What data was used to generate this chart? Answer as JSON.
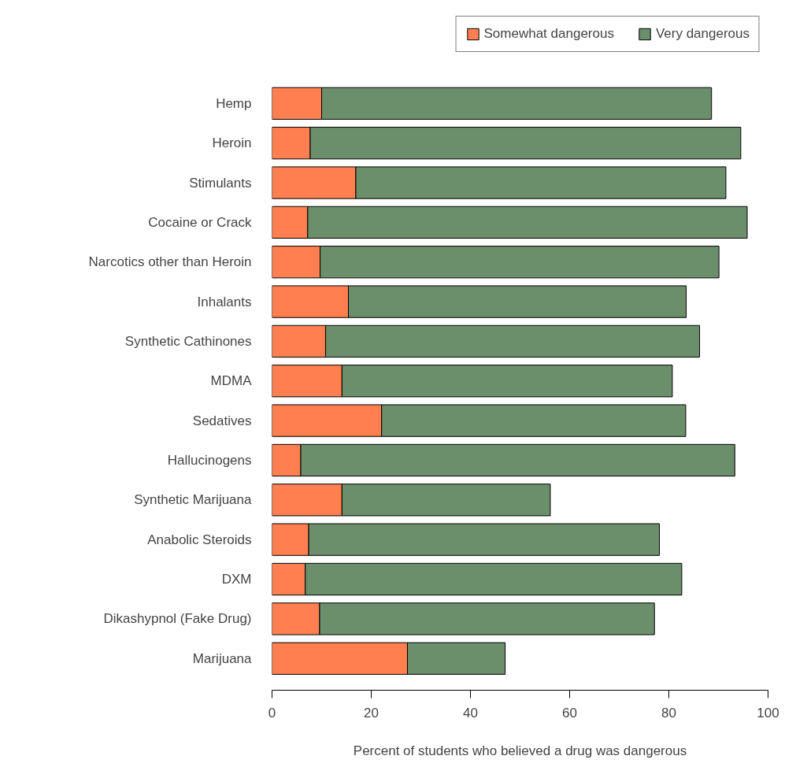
{
  "chart_data": {
    "type": "bar",
    "orientation": "horizontal",
    "stacked": true,
    "xlabel": "Percent of students who believed a drug was dangerous",
    "categories": [
      "Hemp",
      "Heroin",
      "Stimulants",
      "Cocaine or Crack",
      "Narcotics other than Heroin",
      "Inhalants",
      "Synthetic Cathinones",
      "MDMA",
      "Sedatives",
      "Hallucinogens",
      "Synthetic Marijuana",
      "Anabolic Steroids",
      "DXM",
      "Dikashypnol (Fake Drug)",
      "Marijuana"
    ],
    "series": [
      {
        "name": "Somewhat dangerous",
        "color": "#ff7f50",
        "values": [
          10.0,
          7.7,
          16.9,
          7.2,
          9.7,
          15.4,
          10.8,
          14.1,
          22.1,
          5.8,
          14.1,
          7.4,
          6.7,
          9.6,
          27.3
        ]
      },
      {
        "name": "Very dangerous",
        "color": "#6b8e6b",
        "values": [
          78.6,
          86.8,
          74.6,
          88.6,
          80.4,
          68.1,
          75.4,
          66.6,
          61.3,
          87.5,
          42.0,
          70.7,
          75.9,
          67.5,
          19.7
        ]
      }
    ],
    "xlim": [
      0,
      100
    ],
    "xticks": [
      0,
      20,
      40,
      60,
      80,
      100
    ],
    "grid": false,
    "legend": "top"
  }
}
